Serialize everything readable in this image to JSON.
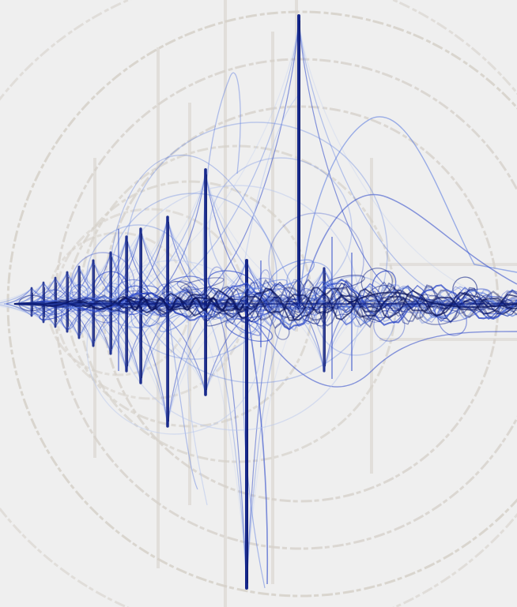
{
  "artwork": {
    "background_color": "#efefef",
    "guide_color": "#d6d1ca",
    "trace_colors": {
      "light": "#b9c8ee",
      "mid": "#5d7de0",
      "strong": "#2a46c8",
      "deep": "#0d1f85",
      "ink": "#0a1460"
    }
  }
}
